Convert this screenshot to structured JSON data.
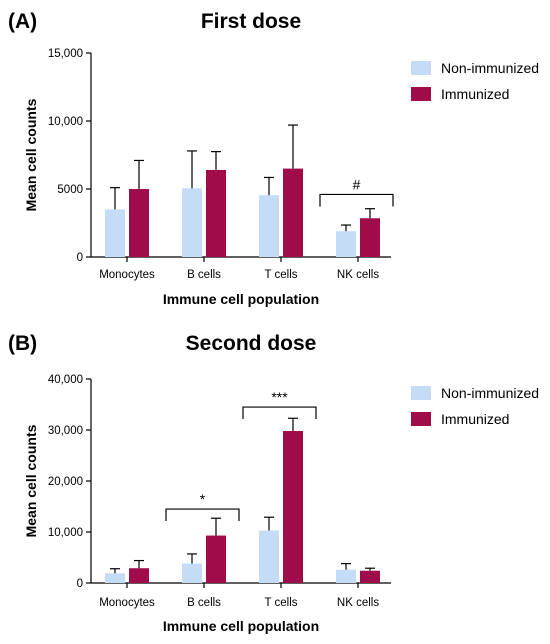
{
  "colors": {
    "non_immunized": "#c5dcf6",
    "immunized": "#a00c4a",
    "axis": "#000000"
  },
  "chart_data": [
    {
      "panel": "(A)",
      "type": "bar",
      "title": "First dose",
      "xlabel": "Immune cell population",
      "ylabel": "Mean cell counts",
      "categories": [
        "Monocytes",
        "B cells",
        "T cells",
        "NK cells"
      ],
      "ylim": [
        0,
        15000
      ],
      "yticks": [
        0,
        5000,
        10000,
        15000
      ],
      "ytick_labels": [
        "0",
        "5000",
        "10,000",
        "15,000"
      ],
      "series": [
        {
          "name": "Non-immunized",
          "color": "#c5dcf6",
          "values": [
            3500,
            5050,
            4550,
            1900
          ],
          "errors": [
            1600,
            2750,
            1300,
            450
          ]
        },
        {
          "name": "Immunized",
          "color": "#a00c4a",
          "values": [
            5000,
            6400,
            6500,
            2850
          ],
          "errors": [
            2100,
            1350,
            3200,
            700
          ]
        }
      ],
      "annotations": [
        {
          "label": "#",
          "from": 3,
          "to": 3,
          "value": 4600
        }
      ],
      "legend": "top-right"
    },
    {
      "panel": "(B)",
      "type": "bar",
      "title": "Second dose",
      "xlabel": "Immune cell population",
      "ylabel": "Mean cell counts",
      "categories": [
        "Monocytes",
        "B cells",
        "T cells",
        "NK cells"
      ],
      "ylim": [
        0,
        40000
      ],
      "yticks": [
        0,
        10000,
        20000,
        30000,
        40000
      ],
      "ytick_labels": [
        "0",
        "10,000",
        "20,000",
        "30,000",
        "40,000"
      ],
      "series": [
        {
          "name": "Non-immunized",
          "color": "#c5dcf6",
          "values": [
            1900,
            3800,
            10300,
            2600
          ],
          "errors": [
            900,
            1900,
            2600,
            1200
          ]
        },
        {
          "name": "Immunized",
          "color": "#a00c4a",
          "values": [
            2900,
            9300,
            29800,
            2400
          ],
          "errors": [
            1500,
            3400,
            2500,
            500
          ]
        }
      ],
      "annotations": [
        {
          "label": "*",
          "from": 1,
          "to": 1,
          "value": 14500
        },
        {
          "label": "***",
          "from": 2,
          "to": 2,
          "value": 34500
        }
      ],
      "legend": "top-right"
    }
  ]
}
